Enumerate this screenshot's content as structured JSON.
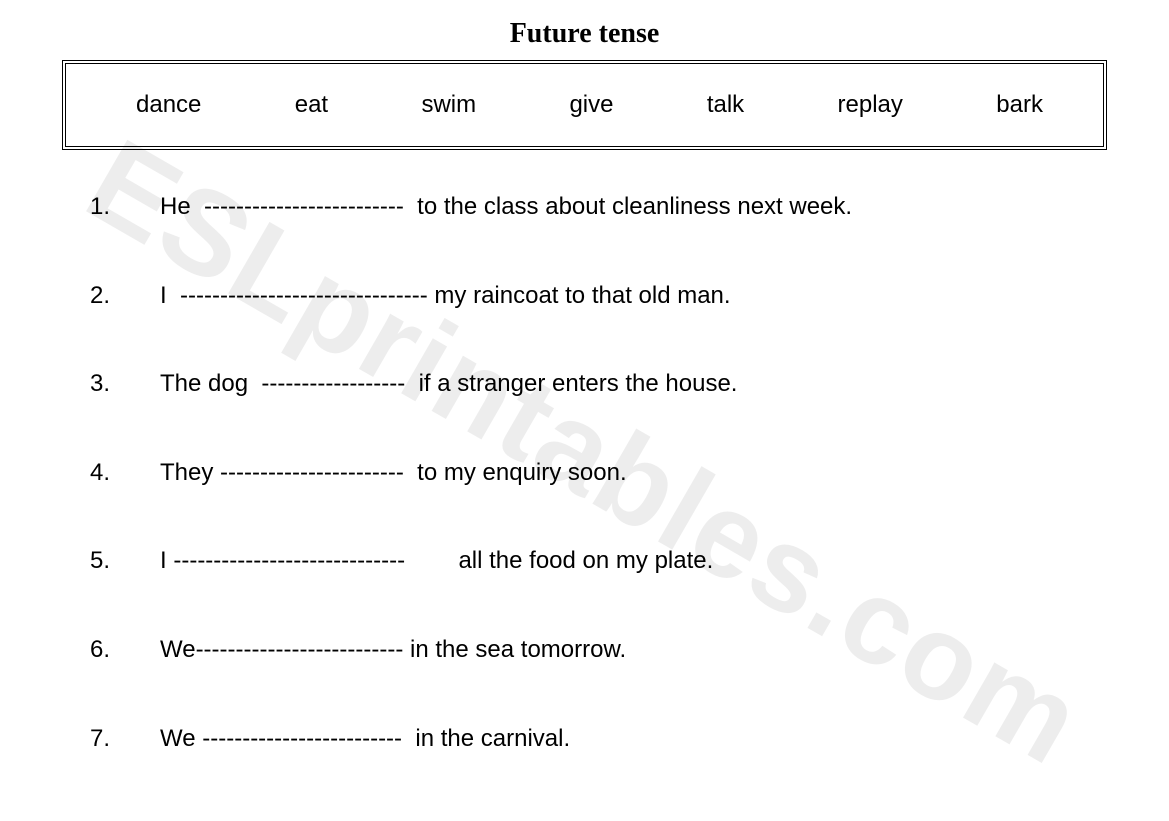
{
  "title": "Future tense",
  "word_bank": [
    "dance",
    "eat",
    "swim",
    "give",
    "talk",
    "replay",
    "bark"
  ],
  "questions": [
    {
      "num": "1.",
      "text": "He  -------------------------  to the class about cleanliness next week."
    },
    {
      "num": "2.",
      "text": "I  ------------------------------- my raincoat to that old man."
    },
    {
      "num": "3.",
      "text": "The dog  ------------------  if a stranger enters the house."
    },
    {
      "num": "4.",
      "text": "They -----------------------  to my enquiry soon."
    },
    {
      "num": "5.",
      "text": "I -----------------------------        all the food on my plate."
    },
    {
      "num": "6.",
      "text": "We-------------------------- in the sea tomorrow."
    },
    {
      "num": "7.",
      "text": "We -------------------------  in the carnival."
    }
  ],
  "watermark_text": "ESLprintables.com",
  "colors": {
    "background": "#ffffff",
    "text": "#000000",
    "border": "#000000",
    "watermark": "rgba(0,0,0,0.07)"
  },
  "fonts": {
    "title_family": "Times New Roman",
    "title_size_pt": 21,
    "body_family": "Arial",
    "body_size_pt": 18
  }
}
